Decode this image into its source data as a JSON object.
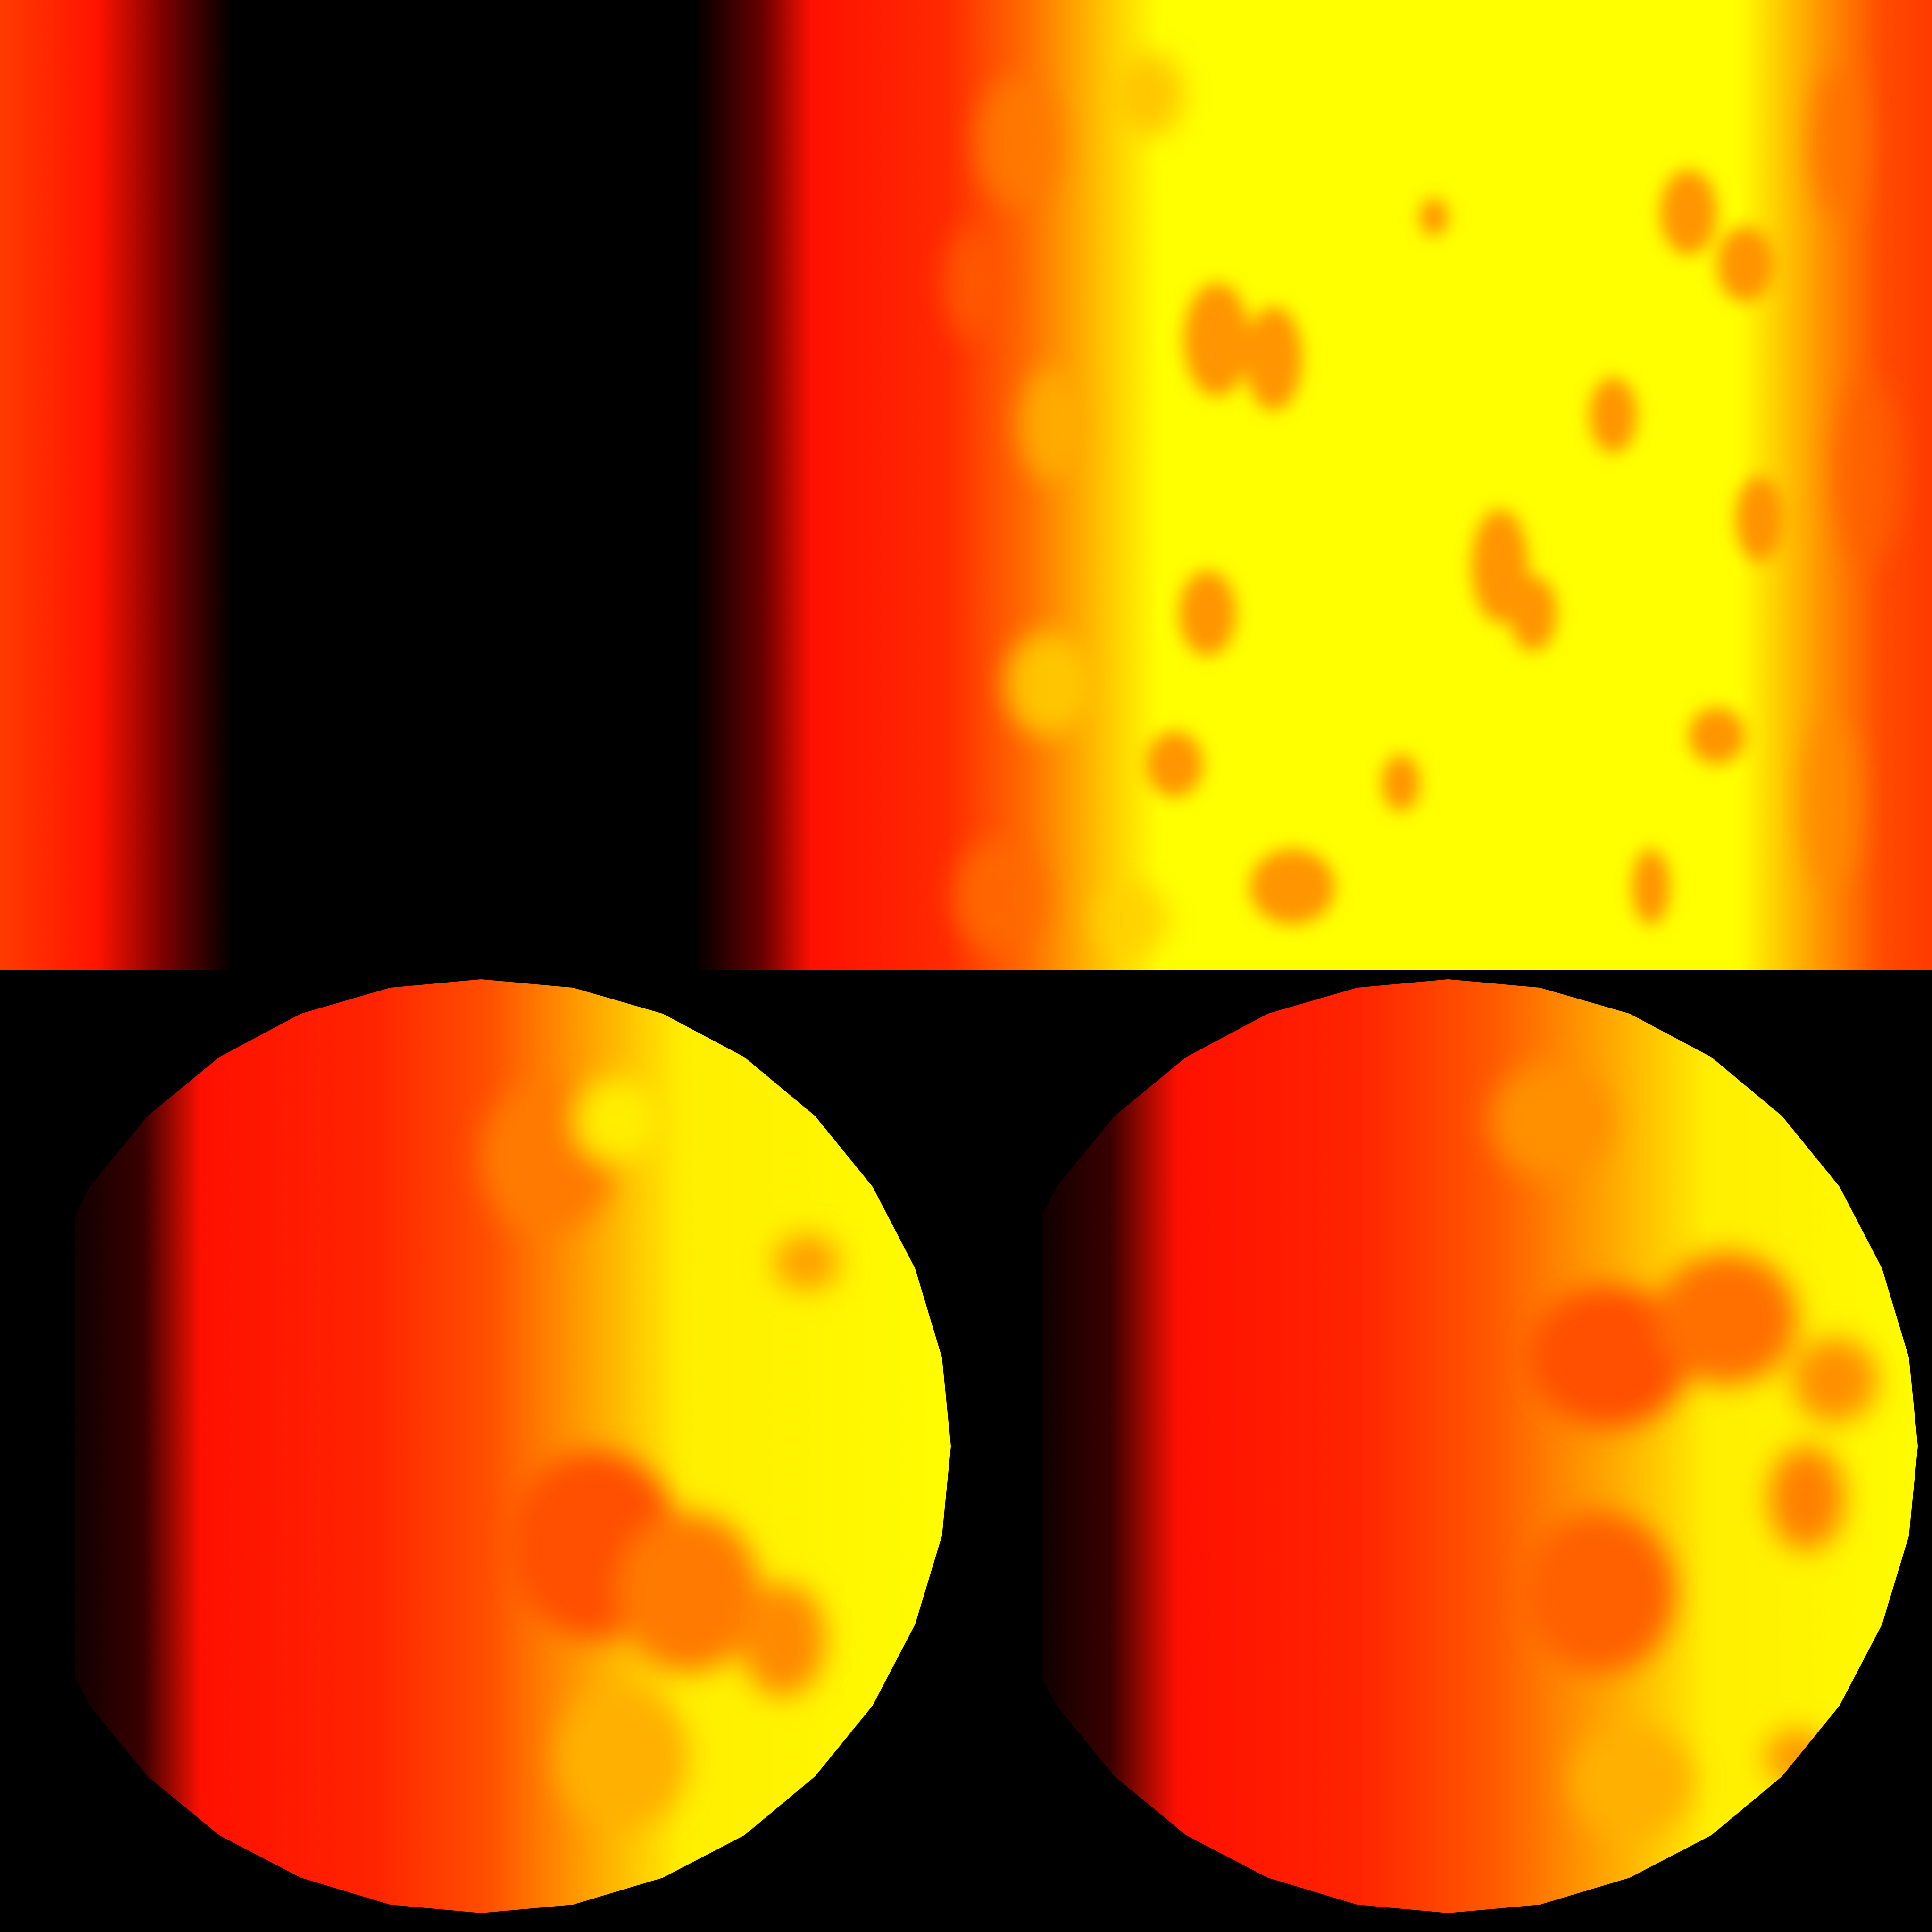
{
  "scene": {
    "texture_panel": {
      "description_name": "equirectangular-fire-texture"
    },
    "spheres": [
      {
        "name": "sphere-left"
      },
      {
        "name": "sphere-right"
      }
    ]
  },
  "colors": {
    "background": "#000000",
    "dark": "#000000",
    "deep_red": "#5a0000",
    "red": "#ff1000",
    "red_orange": "#ff3800",
    "orange": "#ff7a00",
    "amber": "#ffb000",
    "yellow": "#ffff00"
  }
}
